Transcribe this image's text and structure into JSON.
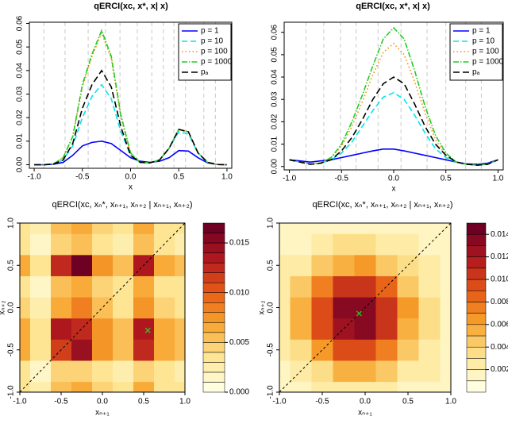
{
  "chart_data": [
    {
      "type": "line",
      "title": "qERCI(xc, x*, x| x)",
      "x_label": "x",
      "x": [
        -1,
        -0.9,
        -0.8,
        -0.7,
        -0.6,
        -0.5,
        -0.4,
        -0.3,
        -0.2,
        -0.1,
        0,
        0.1,
        0.2,
        0.3,
        0.4,
        0.5,
        0.6,
        0.7,
        0.8,
        0.9,
        1
      ],
      "series": [
        {
          "name": "p = 1",
          "color": "#0000ff",
          "dash": "none",
          "values": [
            0,
            0,
            0.0002,
            0.001,
            0.004,
            0.008,
            0.0095,
            0.01,
            0.009,
            0.006,
            0.003,
            0.0015,
            0.001,
            0.0015,
            0.003,
            0.006,
            0.0058,
            0.003,
            0.0008,
            0.0001,
            0
          ]
        },
        {
          "name": "p = 10",
          "color": "#00e5ee",
          "dash": "7 4",
          "values": [
            0,
            0,
            0.0003,
            0.002,
            0.008,
            0.02,
            0.029,
            0.034,
            0.028,
            0.014,
            0.004,
            0.001,
            0.0008,
            0.002,
            0.007,
            0.014,
            0.013,
            0.005,
            0.001,
            0.0001,
            0
          ]
        },
        {
          "name": "p = 100",
          "color": "#ff8c00",
          "dash": "1.5 3",
          "values": [
            0,
            0,
            0.0004,
            0.003,
            0.012,
            0.033,
            0.046,
            0.056,
            0.045,
            0.02,
            0.005,
            0.001,
            0.0008,
            0.002,
            0.007,
            0.015,
            0.014,
            0.005,
            0.001,
            0.0001,
            0
          ]
        },
        {
          "name": "p = 1000",
          "color": "#22cc22",
          "dash": "7 2 1.5 2",
          "values": [
            0,
            0,
            0.0004,
            0.003,
            0.012,
            0.034,
            0.047,
            0.057,
            0.046,
            0.021,
            0.005,
            0.001,
            0.0008,
            0.002,
            0.007,
            0.015,
            0.014,
            0.005,
            0.001,
            0.0001,
            0
          ]
        },
        {
          "name": "pₐ",
          "color": "#000000",
          "dash": "8 4",
          "values": [
            0,
            0,
            0.0003,
            0.002,
            0.009,
            0.024,
            0.034,
            0.04,
            0.033,
            0.016,
            0.004,
            0.001,
            0.0008,
            0.002,
            0.007,
            0.015,
            0.014,
            0.005,
            0.001,
            0.0001,
            0
          ]
        }
      ],
      "reference_x": [
        -0.9,
        -0.68,
        -0.44,
        -0.26,
        -0.11,
        0.07,
        0.22,
        0.34,
        0.45,
        0.57,
        0.76,
        0.88
      ],
      "xlim": [
        -1.05,
        1.05
      ],
      "xticks": [
        {
          "value": -1,
          "label": "-1.0"
        },
        -0.5,
        {
          "value": 0,
          "label": "0.0"
        },
        0.5,
        {
          "value": 1,
          "label": "1.0"
        }
      ],
      "ylim": [
        -0.0015,
        0.0605
      ],
      "yticks": [
        {
          "value": 0,
          "label": "0.00"
        },
        {
          "value": 0.01,
          "label": "0.01"
        },
        {
          "value": 0.02,
          "label": "0.02"
        },
        {
          "value": 0.03,
          "label": "0.03"
        },
        {
          "value": 0.04,
          "label": "0.04"
        },
        {
          "value": 0.05,
          "label": "0.05"
        },
        {
          "value": 0.06,
          "label": "0.06"
        }
      ],
      "legend": "topright"
    },
    {
      "type": "line",
      "title": "qERCI(xc, x*, x| x)",
      "x_label": "x",
      "x": [
        -1,
        -0.9,
        -0.8,
        -0.7,
        -0.6,
        -0.5,
        -0.4,
        -0.3,
        -0.2,
        -0.1,
        0,
        0.1,
        0.2,
        0.3,
        0.4,
        0.5,
        0.6,
        0.7,
        0.8,
        0.9,
        1
      ],
      "series": [
        {
          "name": "p = 1",
          "color": "#0000ff",
          "dash": "none",
          "values": [
            0.003,
            0.0025,
            0.002,
            0.0025,
            0.003,
            0.004,
            0.005,
            0.006,
            0.007,
            0.0078,
            0.0078,
            0.007,
            0.006,
            0.005,
            0.004,
            0.003,
            0.002,
            0.0012,
            0.001,
            0.0015,
            0.003
          ]
        },
        {
          "name": "p = 10",
          "color": "#00e5ee",
          "dash": "7 4",
          "values": [
            0.003,
            0.002,
            0.0012,
            0.0015,
            0.003,
            0.006,
            0.011,
            0.018,
            0.025,
            0.031,
            0.033,
            0.03,
            0.023,
            0.015,
            0.008,
            0.004,
            0.002,
            0.001,
            0.0008,
            0.0012,
            0.003
          ]
        },
        {
          "name": "p = 100",
          "color": "#ff8c00",
          "dash": "1.5 3",
          "values": [
            0.003,
            0.002,
            0.001,
            0.0015,
            0.004,
            0.009,
            0.018,
            0.029,
            0.041,
            0.051,
            0.055,
            0.05,
            0.038,
            0.024,
            0.012,
            0.005,
            0.002,
            0.001,
            0.0006,
            0.001,
            0.003
          ]
        },
        {
          "name": "p = 1000",
          "color": "#22cc22",
          "dash": "7 2 1.5 2",
          "values": [
            0.003,
            0.002,
            0.001,
            0.0015,
            0.004,
            0.01,
            0.02,
            0.032,
            0.045,
            0.057,
            0.062,
            0.057,
            0.043,
            0.027,
            0.014,
            0.006,
            0.002,
            0.001,
            0.0006,
            0.001,
            0.003
          ]
        },
        {
          "name": "pₐ",
          "color": "#000000",
          "dash": "8 4",
          "values": [
            0.003,
            0.002,
            0.001,
            0.0015,
            0.003,
            0.007,
            0.013,
            0.021,
            0.03,
            0.037,
            0.04,
            0.037,
            0.028,
            0.018,
            0.01,
            0.005,
            0.002,
            0.001,
            0.0006,
            0.001,
            0.003
          ]
        }
      ],
      "reference_x": [
        -0.84,
        -0.67,
        -0.51,
        -0.36,
        -0.15,
        0.07,
        0.32,
        0.5,
        0.69,
        0.84
      ],
      "xlim": [
        -1.05,
        1.05
      ],
      "xticks": [
        {
          "value": -1,
          "label": "-1.0"
        },
        -0.5,
        {
          "value": 0,
          "label": "0.0"
        },
        0.5,
        {
          "value": 1,
          "label": "1.0"
        }
      ],
      "ylim": [
        -0.0015,
        0.0645
      ],
      "yticks": [
        {
          "value": 0,
          "label": "0.00"
        },
        {
          "value": 0.01,
          "label": "0.01"
        },
        {
          "value": 0.02,
          "label": "0.02"
        },
        {
          "value": 0.03,
          "label": "0.03"
        },
        {
          "value": 0.04,
          "label": "0.04"
        },
        {
          "value": 0.05,
          "label": "0.05"
        },
        {
          "value": 0.06,
          "label": "0.06"
        }
      ],
      "legend": "topright"
    },
    {
      "type": "heatmap",
      "title": "qERCI(xc, xₙ*, xₙ₊₁, xₙ₊₂ | xₙ₊₁, xₙ₊₂)",
      "x_label": "xₙ₊₁",
      "y_label": "xₙ₊₂",
      "x": [
        -1,
        -0.75,
        -0.5,
        -0.25,
        0,
        0.25,
        0.5,
        0.75,
        1
      ],
      "y": [
        -1,
        -0.75,
        -0.5,
        -0.25,
        0,
        0.25,
        0.5,
        0.75,
        1
      ],
      "z": [
        [
          0.003,
          0.002,
          0.005,
          0.006,
          0.004,
          0.003,
          0.006,
          0.003,
          0.003
        ],
        [
          0.003,
          0.001,
          0.004,
          0.004,
          0.003,
          0.002,
          0.004,
          0.003,
          0.002
        ],
        [
          0.006,
          0.003,
          0.011,
          0.014,
          0.007,
          0.005,
          0.012,
          0.006,
          0.005
        ],
        [
          0.006,
          0.003,
          0.013,
          0.012,
          0.007,
          0.005,
          0.013,
          0.006,
          0.005
        ],
        [
          0.004,
          0.002,
          0.006,
          0.008,
          0.005,
          0.003,
          0.007,
          0.004,
          0.003
        ],
        [
          0.003,
          0.001,
          0.005,
          0.006,
          0.004,
          0.003,
          0.006,
          0.003,
          0.003
        ],
        [
          0.006,
          0.003,
          0.012,
          0.016,
          0.007,
          0.005,
          0.013,
          0.006,
          0.005
        ],
        [
          0.003,
          0.001,
          0.004,
          0.005,
          0.003,
          0.002,
          0.005,
          0.003,
          0.002
        ],
        [
          0.003,
          0.002,
          0.005,
          0.006,
          0.004,
          0.003,
          0.006,
          0.003,
          0.003
        ]
      ],
      "marker": {
        "x": 0.55,
        "y": -0.27,
        "color": "#22cc22"
      },
      "xlim": [
        -1,
        1
      ],
      "ylim": [
        -1,
        1
      ],
      "xticks": [
        {
          "value": -1,
          "label": "-1.0"
        },
        -0.5,
        {
          "value": 0,
          "label": "0.0"
        },
        0.5,
        {
          "value": 1,
          "label": "1.0"
        }
      ],
      "yticks": [
        {
          "value": -1,
          "label": "-1.0"
        },
        -0.5,
        {
          "value": 0,
          "label": "0.0"
        },
        0.5,
        {
          "value": 1,
          "label": "1.0"
        }
      ],
      "levels": [
        0,
        0.001,
        0.002,
        0.003,
        0.004,
        0.005,
        0.006,
        0.007,
        0.008,
        0.009,
        0.01,
        0.011,
        0.012,
        0.013,
        0.014,
        0.015,
        0.016,
        0.017
      ],
      "colorbar_ticks": [
        {
          "value": 0,
          "label": "0.000"
        },
        {
          "value": 0.005,
          "label": "0.005"
        },
        {
          "value": 0.01,
          "label": "0.010"
        },
        {
          "value": 0.015,
          "label": "0.015"
        }
      ],
      "colormap": [
        "#ffffe0",
        "#fde38f",
        "#f7a32b",
        "#e65a16",
        "#b3191f",
        "#6e0024"
      ]
    },
    {
      "type": "heatmap",
      "title": "qERCI(xc, xₙ*, xₙ₊₁, xₙ₊₂ | xₙ₊₁, xₙ₊₂)",
      "x_label": "xₙ₊₁",
      "y_label": "xₙ₊₂",
      "x": [
        -1,
        -0.75,
        -0.5,
        -0.25,
        0,
        0.25,
        0.5,
        0.75,
        1
      ],
      "y": [
        -1,
        -0.75,
        -0.5,
        -0.25,
        0,
        0.25,
        0.5,
        0.75,
        1
      ],
      "z": [
        [
          0.001,
          0.001,
          0.002,
          0.002,
          0.002,
          0.002,
          0.001,
          0.001,
          0.001
        ],
        [
          0.001,
          0.002,
          0.003,
          0.005,
          0.005,
          0.004,
          0.002,
          0.002,
          0.001
        ],
        [
          0.002,
          0.003,
          0.006,
          0.009,
          0.009,
          0.007,
          0.004,
          0.002,
          0.001
        ],
        [
          0.002,
          0.005,
          0.009,
          0.012,
          0.013,
          0.01,
          0.005,
          0.003,
          0.001
        ],
        [
          0.002,
          0.005,
          0.009,
          0.013,
          0.013,
          0.01,
          0.006,
          0.003,
          0.001
        ],
        [
          0.002,
          0.004,
          0.007,
          0.01,
          0.01,
          0.008,
          0.004,
          0.002,
          0.001
        ],
        [
          0.002,
          0.002,
          0.004,
          0.005,
          0.006,
          0.004,
          0.003,
          0.002,
          0.001
        ],
        [
          0.001,
          0.001,
          0.002,
          0.003,
          0.003,
          0.002,
          0.002,
          0.001,
          0.001
        ],
        [
          0.001,
          0.001,
          0.001,
          0.001,
          0.001,
          0.001,
          0.001,
          0.001,
          0.001
        ]
      ],
      "marker": {
        "x": -0.07,
        "y": -0.07,
        "color": "#22cc22"
      },
      "xlim": [
        -1,
        1
      ],
      "ylim": [
        -1,
        1
      ],
      "xticks": [
        {
          "value": -1,
          "label": "-1.0"
        },
        -0.5,
        {
          "value": 0,
          "label": "0.0"
        },
        0.5,
        {
          "value": 1,
          "label": "1.0"
        }
      ],
      "yticks": [
        {
          "value": -1,
          "label": "-1.0"
        },
        -0.5,
        {
          "value": 0,
          "label": "0.0"
        },
        0.5,
        {
          "value": 1,
          "label": "1.0"
        }
      ],
      "levels": [
        0,
        0.001,
        0.002,
        0.003,
        0.004,
        0.005,
        0.006,
        0.007,
        0.008,
        0.009,
        0.01,
        0.011,
        0.012,
        0.013,
        0.014,
        0.015
      ],
      "colorbar_ticks": [
        {
          "value": 0.002,
          "label": "0.002"
        },
        {
          "value": 0.004,
          "label": "0.004"
        },
        {
          "value": 0.006,
          "label": "0.006"
        },
        {
          "value": 0.008,
          "label": "0.008"
        },
        {
          "value": 0.01,
          "label": "0.010"
        },
        {
          "value": 0.012,
          "label": "0.012"
        },
        {
          "value": 0.014,
          "label": "0.014"
        }
      ],
      "colormap": [
        "#ffffe0",
        "#fde38f",
        "#f7a32b",
        "#e65a16",
        "#b3191f",
        "#6e0024"
      ]
    }
  ]
}
